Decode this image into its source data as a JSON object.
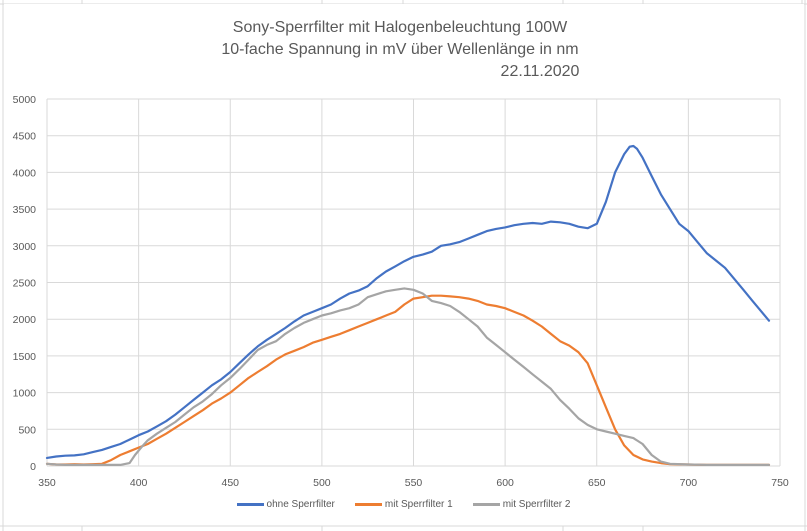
{
  "chart_data": {
    "type": "line",
    "title": "Sony-Sperrfilter mit Halogenbeleuchtung 100W",
    "subtitle": "10-fache Spannung in mV über Wellenlänge in nm",
    "date": "22.11.2020",
    "xlabel": "",
    "ylabel": "",
    "xlim": [
      350,
      750
    ],
    "ylim": [
      0,
      5000
    ],
    "xticks": [
      350,
      400,
      450,
      500,
      550,
      600,
      650,
      700,
      750
    ],
    "yticks": [
      0,
      500,
      1000,
      1500,
      2000,
      2500,
      3000,
      3500,
      4000,
      4500,
      5000
    ],
    "grid": true,
    "legend_position": "bottom",
    "series": [
      {
        "name": "ohne Sperrfilter",
        "color": "#4472C4",
        "x": [
          350,
          355,
          360,
          365,
          370,
          375,
          380,
          385,
          390,
          395,
          400,
          405,
          410,
          415,
          420,
          425,
          430,
          435,
          440,
          445,
          450,
          455,
          460,
          465,
          470,
          475,
          480,
          485,
          490,
          495,
          500,
          505,
          510,
          515,
          520,
          525,
          530,
          535,
          540,
          545,
          550,
          555,
          560,
          565,
          570,
          575,
          580,
          585,
          590,
          595,
          600,
          605,
          610,
          615,
          620,
          625,
          630,
          635,
          640,
          645,
          650,
          655,
          660,
          665,
          668,
          670,
          672,
          675,
          680,
          685,
          690,
          695,
          700,
          705,
          710,
          715,
          720,
          725,
          730,
          735,
          740,
          744
        ],
        "y": [
          110,
          130,
          140,
          145,
          160,
          190,
          220,
          260,
          300,
          360,
          420,
          470,
          540,
          610,
          700,
          800,
          900,
          1000,
          1100,
          1180,
          1280,
          1400,
          1520,
          1630,
          1720,
          1800,
          1880,
          1970,
          2050,
          2100,
          2150,
          2200,
          2280,
          2350,
          2390,
          2450,
          2560,
          2650,
          2720,
          2790,
          2850,
          2880,
          2920,
          3000,
          3020,
          3050,
          3100,
          3150,
          3200,
          3230,
          3250,
          3280,
          3300,
          3310,
          3300,
          3330,
          3320,
          3300,
          3260,
          3240,
          3300,
          3600,
          4000,
          4250,
          4350,
          4360,
          4320,
          4200,
          3950,
          3700,
          3500,
          3300,
          3200,
          3050,
          2900,
          2800,
          2700,
          2550,
          2400,
          2250,
          2100,
          1980
        ]
      },
      {
        "name": "mit Sperrfilter 1",
        "color": "#ED7D31",
        "x": [
          350,
          355,
          360,
          365,
          370,
          375,
          380,
          385,
          390,
          395,
          400,
          405,
          410,
          415,
          420,
          425,
          430,
          435,
          440,
          445,
          450,
          455,
          460,
          465,
          470,
          475,
          480,
          485,
          490,
          495,
          500,
          505,
          510,
          515,
          520,
          525,
          530,
          535,
          540,
          545,
          550,
          555,
          560,
          565,
          570,
          575,
          580,
          585,
          590,
          595,
          600,
          605,
          610,
          615,
          620,
          625,
          630,
          635,
          640,
          645,
          650,
          655,
          660,
          665,
          670,
          675,
          680,
          685,
          690,
          700,
          710,
          720,
          730,
          740,
          744
        ],
        "y": [
          30,
          20,
          20,
          25,
          20,
          25,
          30,
          80,
          150,
          200,
          250,
          300,
          370,
          440,
          520,
          600,
          680,
          760,
          850,
          920,
          1000,
          1100,
          1200,
          1280,
          1360,
          1450,
          1520,
          1570,
          1620,
          1680,
          1720,
          1760,
          1800,
          1850,
          1900,
          1950,
          2000,
          2050,
          2100,
          2200,
          2280,
          2300,
          2320,
          2320,
          2310,
          2300,
          2280,
          2250,
          2200,
          2180,
          2150,
          2100,
          2050,
          1980,
          1900,
          1800,
          1700,
          1640,
          1550,
          1400,
          1100,
          800,
          500,
          280,
          150,
          90,
          60,
          40,
          25,
          20,
          15,
          15,
          15,
          15,
          15
        ]
      },
      {
        "name": "mit Sperrfilter 2",
        "color": "#A5A5A5",
        "x": [
          350,
          355,
          360,
          365,
          370,
          375,
          380,
          385,
          390,
          395,
          398,
          402,
          405,
          410,
          415,
          420,
          425,
          430,
          435,
          440,
          445,
          450,
          455,
          460,
          465,
          470,
          475,
          480,
          485,
          490,
          495,
          500,
          505,
          510,
          515,
          520,
          525,
          530,
          535,
          540,
          545,
          550,
          555,
          560,
          565,
          570,
          575,
          580,
          585,
          590,
          595,
          600,
          605,
          610,
          615,
          620,
          625,
          630,
          635,
          640,
          645,
          650,
          655,
          660,
          665,
          670,
          675,
          680,
          685,
          690,
          700,
          710,
          720,
          730,
          740,
          744
        ],
        "y": [
          30,
          20,
          15,
          15,
          15,
          15,
          15,
          15,
          15,
          40,
          150,
          270,
          350,
          440,
          520,
          600,
          700,
          800,
          880,
          980,
          1100,
          1200,
          1320,
          1450,
          1580,
          1650,
          1700,
          1800,
          1880,
          1950,
          2000,
          2050,
          2080,
          2120,
          2150,
          2200,
          2300,
          2340,
          2380,
          2400,
          2420,
          2400,
          2350,
          2250,
          2220,
          2180,
          2100,
          2000,
          1900,
          1750,
          1650,
          1550,
          1450,
          1350,
          1250,
          1150,
          1050,
          900,
          780,
          650,
          560,
          500,
          470,
          440,
          410,
          380,
          300,
          150,
          60,
          30,
          20,
          15,
          15,
          15,
          15,
          15
        ]
      }
    ]
  }
}
